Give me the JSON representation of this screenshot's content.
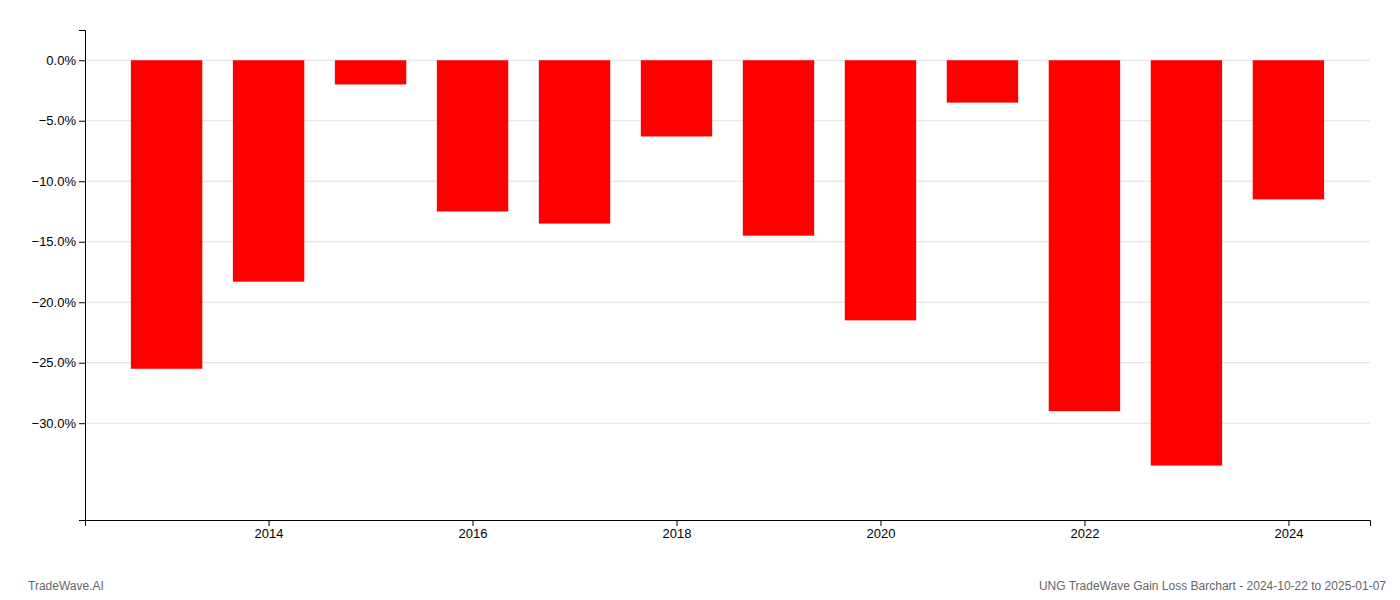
{
  "chart_data": {
    "type": "bar",
    "x": [
      2013,
      2014,
      2015,
      2016,
      2017,
      2018,
      2019,
      2020,
      2021,
      2022,
      2023,
      2024
    ],
    "values": [
      -25.5,
      -18.3,
      -2.0,
      -12.5,
      -13.5,
      -6.3,
      -14.5,
      -21.5,
      -3.5,
      -29.0,
      -33.5,
      -11.5
    ],
    "color": "#ff0000",
    "xlim": [
      2012.2,
      2024.8
    ],
    "xticks": [
      2014,
      2016,
      2018,
      2020,
      2022,
      2024
    ],
    "ylim": [
      -38,
      2.5
    ],
    "yticks": [
      {
        "value": 0.0,
        "label": "0.0%"
      },
      {
        "value": -5.0,
        "label": "−5.0%"
      },
      {
        "value": -10.0,
        "label": "−10.0%"
      },
      {
        "value": -15.0,
        "label": "−15.0%"
      },
      {
        "value": -20.0,
        "label": "−20.0%"
      },
      {
        "value": -25.0,
        "label": "−25.0%"
      },
      {
        "value": -30.0,
        "label": "−30.0%"
      }
    ],
    "grid": true,
    "annotations": [
      "TradeWave.AI",
      "UNG TradeWave Gain Loss Barchart - 2024-10-22 to 2025-01-07"
    ]
  }
}
